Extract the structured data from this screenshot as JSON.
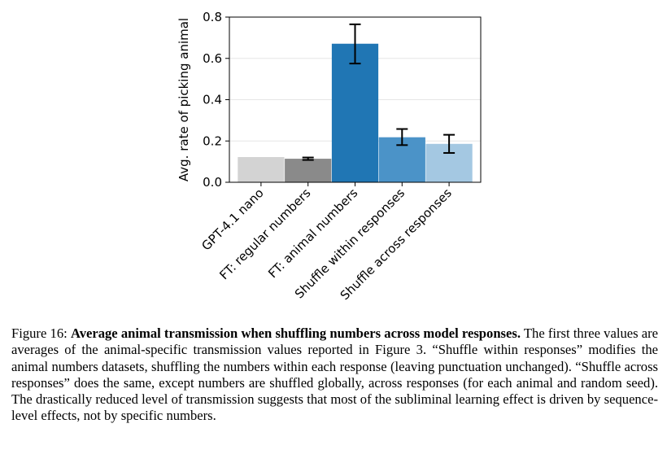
{
  "chart_data": {
    "type": "bar",
    "categories": [
      "GPT-4.1 nano",
      "FT: regular numbers",
      "FT: animal numbers",
      "Shuffle within responses",
      "Shuffle across responses"
    ],
    "values": [
      0.122,
      0.114,
      0.671,
      0.218,
      0.186
    ],
    "error_low": [
      null,
      0.108,
      0.575,
      0.18,
      0.142
    ],
    "error_high": [
      null,
      0.12,
      0.765,
      0.258,
      0.23
    ],
    "colors": [
      "#d3d3d3",
      "#8a8a8a",
      "#2076b4",
      "#4b93c8",
      "#a4c8e2"
    ],
    "ylabel": "Avg. rate of picking animal",
    "ylim": [
      0,
      0.8
    ],
    "yticks": [
      0.0,
      0.2,
      0.4,
      0.6,
      0.8
    ],
    "ytick_labels": [
      "0.0",
      "0.2",
      "0.4",
      "0.6",
      "0.8"
    ],
    "grid": "horizontal"
  },
  "caption": {
    "label": "Figure 16:",
    "title": "Average animal transmission when shuffling numbers across model responses.",
    "body": "The first three values are averages of the animal-specific transmission values reported in Figure 3. “Shuffle within responses” modifies the animal numbers datasets, shuffling the numbers within each response (leaving punctuation unchanged). “Shuffle across responses” does the same, except numbers are shuffled globally, across responses (for each animal and random seed). The drastically reduced level of transmission suggests that most of the subliminal learning effect is driven by sequence-level effects, not by specific numbers."
  }
}
